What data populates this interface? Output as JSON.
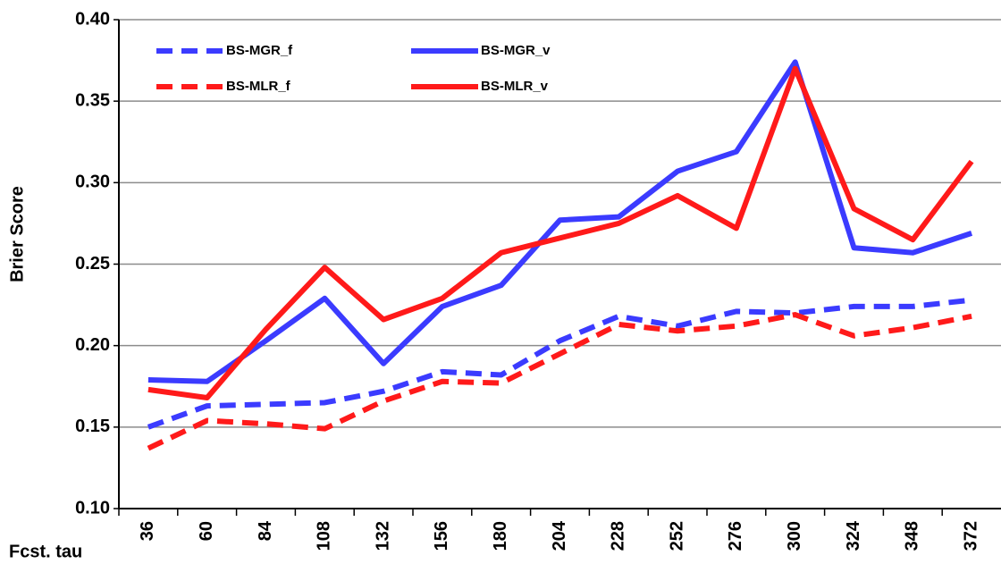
{
  "chart_data": {
    "type": "line",
    "y_label": "Brier Score",
    "x_label": "Fcst. tau",
    "categories": [
      "36",
      "60",
      "84",
      "108",
      "132",
      "156",
      "180",
      "204",
      "228",
      "252",
      "276",
      "300",
      "324",
      "348",
      "372"
    ],
    "series": [
      {
        "name": "BS-MGR_f",
        "color": "#3b3bff",
        "dashed": true,
        "values": [
          0.15,
          0.163,
          0.164,
          0.165,
          0.172,
          0.184,
          0.182,
          0.203,
          0.218,
          0.212,
          0.221,
          0.22,
          0.224,
          0.224,
          0.228
        ]
      },
      {
        "name": "BS-MGR_v",
        "color": "#3b3bff",
        "dashed": false,
        "values": [
          0.179,
          0.178,
          0.203,
          0.229,
          0.189,
          0.224,
          0.237,
          0.277,
          0.279,
          0.307,
          0.319,
          0.374,
          0.26,
          0.257,
          0.269
        ]
      },
      {
        "name": "BS-MLR_f",
        "color": "#ff1a1a",
        "dashed": true,
        "values": [
          0.137,
          0.154,
          0.152,
          0.149,
          0.166,
          0.178,
          0.177,
          0.195,
          0.213,
          0.209,
          0.212,
          0.219,
          0.206,
          0.211,
          0.218
        ]
      },
      {
        "name": "BS-MLR_v",
        "color": "#ff1a1a",
        "dashed": false,
        "values": [
          0.173,
          0.168,
          0.21,
          0.248,
          0.216,
          0.229,
          0.257,
          0.266,
          0.275,
          0.292,
          0.272,
          0.37,
          0.284,
          0.265,
          0.313
        ]
      }
    ],
    "ylim": [
      0.1,
      0.4
    ],
    "yticks": [
      {
        "value": 0.1,
        "label": "0.10"
      },
      0.15,
      {
        "value": 0.2,
        "label": "0.20"
      },
      0.25,
      {
        "value": 0.3,
        "label": "0.30"
      },
      0.35,
      {
        "value": 0.4,
        "label": "0.40"
      }
    ],
    "grid": true,
    "legend": "upper left"
  }
}
